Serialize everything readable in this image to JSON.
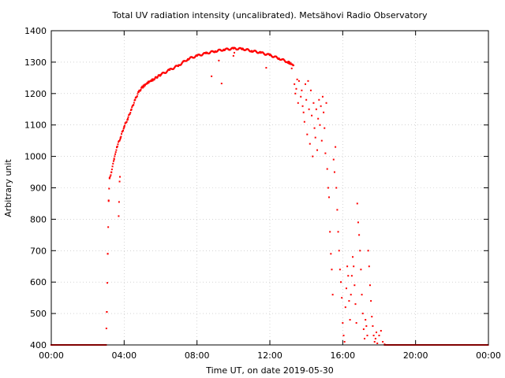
{
  "chart_data": {
    "type": "scatter",
    "title": "Total UV radiation intensity (uncalibrated). Metsähovi Radio Observatory",
    "xlabel": "Time UT, on date 2019-05-30",
    "ylabel": "Arbitrary unit",
    "xlim_hours": [
      0,
      24
    ],
    "ylim": [
      400,
      1400
    ],
    "x_ticks": [
      {
        "hour": 0,
        "label": "00:00"
      },
      {
        "hour": 4,
        "label": "04:00"
      },
      {
        "hour": 8,
        "label": "08:00"
      },
      {
        "hour": 12,
        "label": "12:00"
      },
      {
        "hour": 16,
        "label": "16:00"
      },
      {
        "hour": 20,
        "label": "20:00"
      },
      {
        "hour": 24,
        "label": "00:00"
      }
    ],
    "y_ticks": [
      400,
      500,
      600,
      700,
      800,
      900,
      1000,
      1100,
      1200,
      1300,
      1400
    ],
    "grid": true,
    "marker_color": "#ff0000",
    "series": [
      {
        "curve_points": [
          [
            0.0,
            400
          ],
          [
            3.0,
            400
          ],
          [
            3.05,
            505
          ],
          [
            3.1,
            690
          ],
          [
            3.15,
            860
          ],
          [
            3.2,
            930
          ],
          [
            3.3,
            950
          ],
          [
            3.45,
            990
          ],
          [
            3.6,
            1030
          ],
          [
            3.8,
            1060
          ],
          [
            4.0,
            1095
          ],
          [
            4.2,
            1120
          ],
          [
            4.4,
            1150
          ],
          [
            4.6,
            1180
          ],
          [
            4.8,
            1205
          ],
          [
            5.0,
            1220
          ],
          [
            5.3,
            1235
          ],
          [
            5.6,
            1245
          ],
          [
            6.0,
            1260
          ],
          [
            6.5,
            1275
          ],
          [
            7.0,
            1290
          ],
          [
            7.5,
            1310
          ],
          [
            8.0,
            1320
          ],
          [
            8.5,
            1328
          ],
          [
            9.0,
            1335
          ],
          [
            9.5,
            1340
          ],
          [
            10.0,
            1343
          ],
          [
            10.5,
            1342
          ],
          [
            11.0,
            1336
          ],
          [
            11.5,
            1330
          ],
          [
            12.0,
            1322
          ],
          [
            12.5,
            1312
          ],
          [
            13.0,
            1300
          ],
          [
            13.3,
            1290
          ]
        ],
        "afternoon_points": [
          [
            13.2,
            1280
          ],
          [
            13.35,
            1230
          ],
          [
            13.4,
            1200
          ],
          [
            13.45,
            1215
          ],
          [
            13.5,
            1245
          ],
          [
            13.55,
            1170
          ],
          [
            13.6,
            1240
          ],
          [
            13.7,
            1190
          ],
          [
            13.75,
            1210
          ],
          [
            13.8,
            1160
          ],
          [
            13.85,
            1140
          ],
          [
            13.9,
            1110
          ],
          [
            13.95,
            1230
          ],
          [
            14.0,
            1180
          ],
          [
            14.05,
            1070
          ],
          [
            14.1,
            1240
          ],
          [
            14.15,
            1150
          ],
          [
            14.2,
            1040
          ],
          [
            14.25,
            1210
          ],
          [
            14.3,
            1130
          ],
          [
            14.35,
            1000
          ],
          [
            14.4,
            1170
          ],
          [
            14.45,
            1090
          ],
          [
            14.5,
            1060
          ],
          [
            14.55,
            1150
          ],
          [
            14.6,
            1020
          ],
          [
            14.65,
            1120
          ],
          [
            14.7,
            1180
          ],
          [
            14.75,
            1100
          ],
          [
            14.8,
            1160
          ],
          [
            14.85,
            1050
          ],
          [
            14.9,
            1190
          ],
          [
            14.95,
            1140
          ],
          [
            15.0,
            1090
          ],
          [
            15.05,
            1010
          ],
          [
            15.1,
            1170
          ],
          [
            15.15,
            960
          ],
          [
            15.2,
            900
          ],
          [
            15.25,
            870
          ],
          [
            15.3,
            760
          ],
          [
            15.35,
            690
          ],
          [
            15.4,
            640
          ],
          [
            15.45,
            560
          ],
          [
            15.5,
            990
          ],
          [
            15.55,
            950
          ],
          [
            15.6,
            1030
          ],
          [
            15.65,
            900
          ],
          [
            15.7,
            830
          ],
          [
            15.75,
            760
          ],
          [
            15.8,
            700
          ],
          [
            15.85,
            640
          ],
          [
            15.9,
            600
          ],
          [
            15.95,
            550
          ],
          [
            16.0,
            470
          ],
          [
            16.05,
            430
          ],
          [
            16.1,
            410
          ],
          [
            16.15,
            520
          ],
          [
            16.2,
            580
          ],
          [
            16.25,
            650
          ],
          [
            16.3,
            620
          ],
          [
            16.35,
            540
          ],
          [
            16.4,
            480
          ],
          [
            16.45,
            560
          ],
          [
            16.5,
            620
          ],
          [
            16.55,
            680
          ],
          [
            16.6,
            650
          ],
          [
            16.65,
            590
          ],
          [
            16.7,
            530
          ],
          [
            16.75,
            470
          ],
          [
            16.8,
            850
          ],
          [
            16.85,
            790
          ],
          [
            16.9,
            750
          ],
          [
            16.95,
            700
          ],
          [
            17.0,
            640
          ],
          [
            17.05,
            560
          ],
          [
            17.1,
            500
          ],
          [
            17.15,
            450
          ],
          [
            17.2,
            420
          ],
          [
            17.25,
            480
          ],
          [
            17.3,
            460
          ],
          [
            17.35,
            430
          ],
          [
            17.4,
            700
          ],
          [
            17.45,
            650
          ],
          [
            17.5,
            590
          ],
          [
            17.55,
            540
          ],
          [
            17.6,
            490
          ],
          [
            17.65,
            460
          ],
          [
            17.7,
            430
          ],
          [
            17.75,
            410
          ],
          [
            17.8,
            420
          ],
          [
            17.85,
            440
          ],
          [
            17.9,
            405
          ],
          [
            18.0,
            430
          ],
          [
            18.1,
            445
          ],
          [
            18.2,
            410
          ],
          [
            18.3,
            402
          ]
        ],
        "outliers": [
          [
            3.7,
            810
          ],
          [
            3.72,
            855
          ],
          [
            3.75,
            920
          ],
          [
            3.77,
            935
          ],
          [
            8.8,
            1255
          ],
          [
            9.2,
            1305
          ],
          [
            9.35,
            1232
          ],
          [
            10.0,
            1320
          ],
          [
            10.05,
            1330
          ],
          [
            11.8,
            1282
          ]
        ],
        "baseline": [
          [
            0,
            400
          ],
          [
            24,
            400
          ]
        ]
      }
    ]
  }
}
